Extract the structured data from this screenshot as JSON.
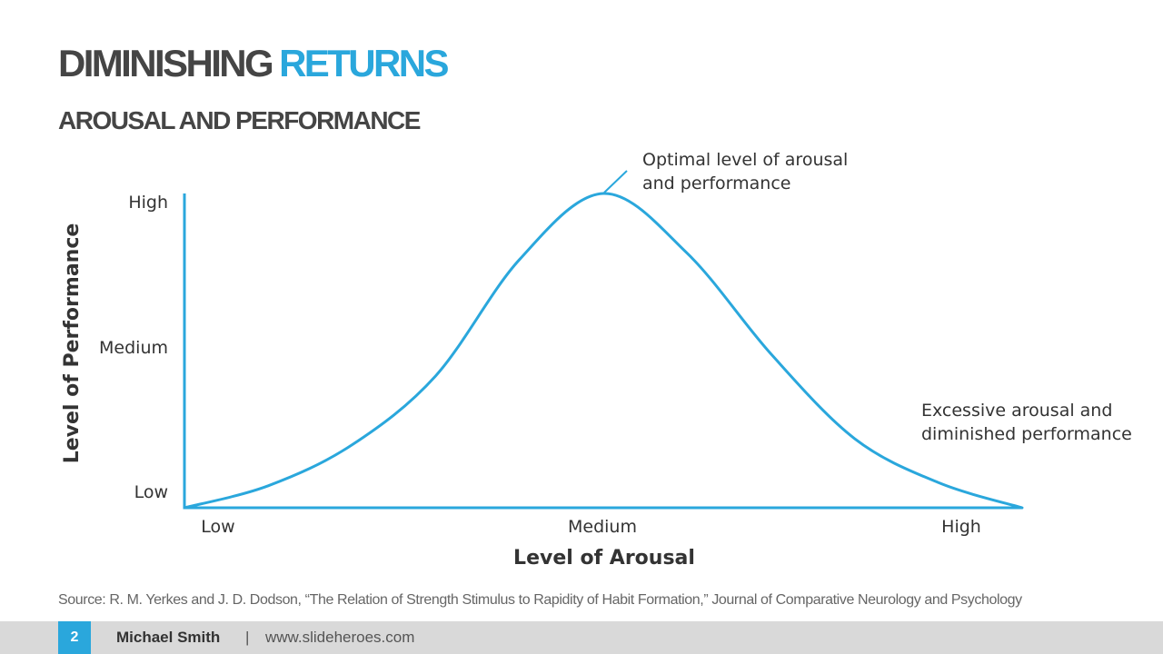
{
  "slide": {
    "title_dark": "DIMINISHING",
    "title_accent": "RETURNS",
    "subtitle": "AROUSAL AND PERFORMANCE",
    "accent_color": "#2aa7dc",
    "source": "Source:  R. M. Yerkes and J. D. Dodson, “The Relation of Strength Stimulus to Rapidity of Habit Formation,” Journal of Comparative Neurology and Psychology"
  },
  "footer": {
    "page_number": "2",
    "author": "Michael Smith",
    "separator": "|",
    "url": "www.slideheroes.com"
  },
  "chart_data": {
    "type": "line",
    "xlabel": "Level of Arousal",
    "ylabel": "Level of Performance",
    "x_ticks": [
      "Low",
      "Medium",
      "High"
    ],
    "y_ticks": [
      "Low",
      "Medium",
      "High"
    ],
    "xlim": [
      0,
      2
    ],
    "ylim": [
      0,
      1
    ],
    "series": [
      {
        "color": "#2aa7dc",
        "x": [
          0,
          0.2,
          0.4,
          0.6,
          0.8,
          1.0,
          1.2,
          1.4,
          1.6,
          1.8,
          2.0
        ],
        "y": [
          0,
          0.07,
          0.2,
          0.42,
          0.79,
          1.0,
          0.81,
          0.49,
          0.22,
          0.08,
          0
        ]
      }
    ],
    "annotations": [
      {
        "text": [
          "Optimal level of arousal",
          "and performance"
        ],
        "x": 1.0,
        "y": 1.0
      },
      {
        "text": [
          "Excessive arousal and",
          "diminished performance"
        ],
        "x": 1.9,
        "y": 0.05
      }
    ],
    "grid": false,
    "legend": "none"
  }
}
